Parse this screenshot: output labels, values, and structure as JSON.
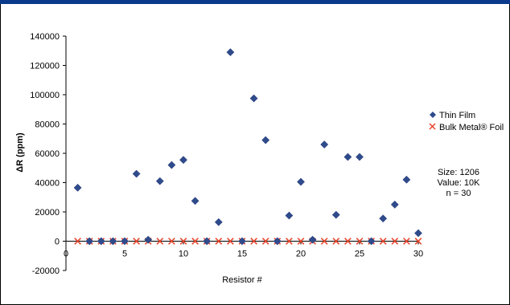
{
  "chart_data": {
    "type": "scatter",
    "xlabel": "Resistor #",
    "ylabel": "ΔR (ppm)",
    "xlim": [
      0,
      30
    ],
    "ylim": [
      -20000,
      140000
    ],
    "x_ticks": [
      "0",
      "5",
      "10",
      "15",
      "20",
      "25",
      "30"
    ],
    "y_ticks": [
      "140000",
      "120000",
      "100000",
      "80000",
      "60000",
      "40000",
      "20000",
      "0",
      "-20000"
    ],
    "grid": false,
    "legend_position": "right",
    "series": [
      {
        "name": "Thin Film",
        "marker": "diamond",
        "color": "#2f4b8c",
        "x": [
          1,
          2,
          3,
          4,
          5,
          6,
          7,
          8,
          9,
          10,
          11,
          12,
          13,
          14,
          15,
          16,
          17,
          18,
          19,
          20,
          21,
          22,
          23,
          24,
          25,
          26,
          27,
          28,
          29,
          30
        ],
        "y": [
          36500,
          0,
          0,
          0,
          0,
          46000,
          1000,
          41000,
          52000,
          55500,
          27500,
          0,
          13000,
          129000,
          0,
          97500,
          69000,
          0,
          17500,
          40500,
          1000,
          66000,
          18000,
          57500,
          57500,
          0,
          15500,
          25000,
          42000,
          5500
        ]
      },
      {
        "name": "Bulk Metal® Foil",
        "marker": "x",
        "color": "#e8472e",
        "x": [
          1,
          2,
          3,
          4,
          5,
          6,
          7,
          8,
          9,
          10,
          11,
          12,
          13,
          14,
          15,
          16,
          17,
          18,
          19,
          20,
          21,
          22,
          23,
          24,
          25,
          26,
          27,
          28,
          29,
          30
        ],
        "y": [
          0,
          0,
          0,
          0,
          0,
          0,
          0,
          0,
          0,
          0,
          0,
          0,
          0,
          0,
          0,
          0,
          0,
          0,
          0,
          0,
          0,
          0,
          0,
          0,
          0,
          0,
          0,
          0,
          0,
          0
        ]
      }
    ],
    "annotations": [
      "Size: 1206",
      "Value: 10K",
      "n = 30"
    ]
  }
}
